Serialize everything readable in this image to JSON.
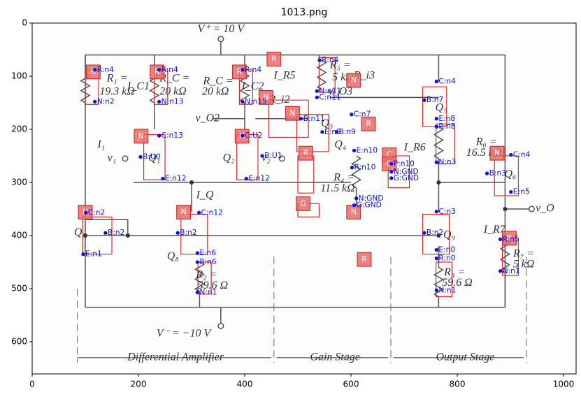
{
  "title": "1013.png",
  "axes": {
    "xticks": [
      0,
      200,
      400,
      600,
      800,
      1000
    ],
    "yticks": [
      0,
      100,
      200,
      300,
      400,
      500,
      600
    ]
  },
  "circuit_labels": [
    "V⁺ = 10 V",
    "R₁ =",
    "19.3 kΩ",
    "I_C1",
    "R_C =",
    "20 kΩ",
    "R_C =",
    "20 kΩ",
    "I_C2",
    "I_R5",
    "R₅ =",
    "5 kΩ",
    "R_i3",
    "v_O3",
    "R_i2",
    "v_O2",
    "I₁",
    "v₁",
    "Q₁",
    "Q₂",
    "v₂",
    "I_R6",
    "R₆ =",
    "16.5 kΩ",
    "R₄ =",
    "11.5 kΩ",
    "I_Q",
    "Q₇",
    "Q₈",
    "Q₉",
    "I_R7",
    "R₇ =",
    "5 kΩ",
    "R₂ =",
    "59.6 Ω",
    "R₃ =",
    "59.6 Ω",
    "v_O",
    "V⁻ = −10 V",
    "Differential Amplifier",
    "Gain Stage",
    "Output Stage",
    "Q₃",
    "Q₄",
    "Q₅",
    "Q₆"
  ],
  "tags": [
    "R",
    "R",
    "R",
    "R",
    "N",
    "N",
    "N",
    "R",
    "N",
    "N",
    "R",
    "C",
    "G",
    "G",
    "N",
    "N",
    "N",
    "R",
    "R",
    "N"
  ],
  "annotations": [
    "R:n4",
    "N:n2",
    "R:n4",
    "N:n13",
    "R:n4",
    "N:n15",
    "R:n4",
    "N:n11",
    "C:n11",
    "C:n4",
    "B:n7",
    "E:n8",
    "R:n8",
    "N:n3",
    "C:n4",
    "B:n3",
    "E:n5",
    "R:n5",
    "N:n1",
    "C:n3",
    "B:n2",
    "E:n0",
    "R:n0",
    "N:n1",
    "C:n13",
    "B:U0",
    "E:n12",
    "C:U2",
    "B:U1",
    "E:n12",
    "B:n11",
    "E:n9",
    "B:n9",
    "C:n7",
    "E:n10",
    "R:n10",
    "P:n10",
    "N:GND",
    "G:GND",
    "N:GND",
    "G:GND",
    "C:n2",
    "B:n2",
    "E:n1",
    "C:n12",
    "B:n2",
    "E:n6",
    "R:n6",
    "N:n1"
  ]
}
